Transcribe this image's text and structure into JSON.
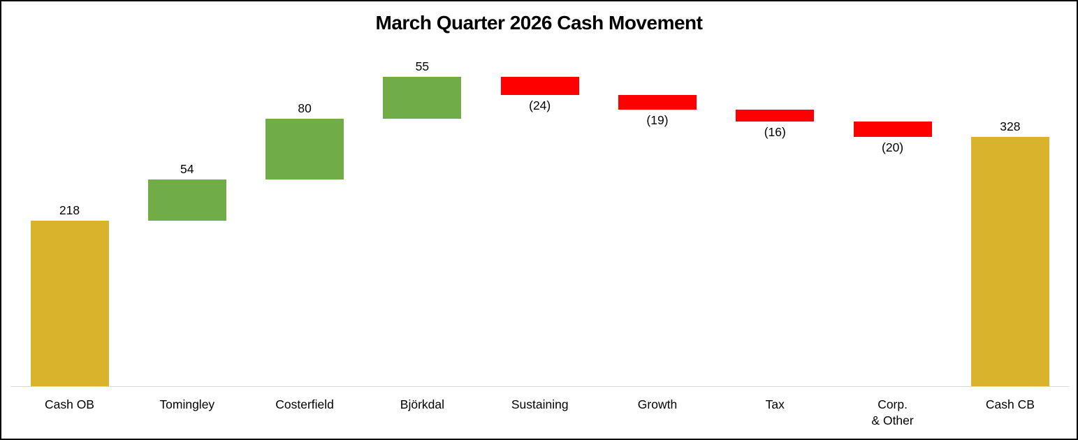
{
  "chart_data": {
    "type": "bar",
    "subtype": "waterfall",
    "title": "March Quarter 2026 Cash Movement",
    "categories": [
      "Cash OB",
      "Tomingley",
      "Costerfield",
      "Björkdal",
      "Sustaining",
      "Growth",
      "Tax",
      "Corp.\n& Other",
      "Cash CB"
    ],
    "values": [
      218,
      54,
      80,
      55,
      -24,
      -19,
      -16,
      -20,
      328
    ],
    "roles": [
      "total",
      "increase",
      "increase",
      "increase",
      "decrease",
      "decrease",
      "decrease",
      "decrease",
      "total"
    ],
    "data_labels": [
      "218",
      "54",
      "80",
      "55",
      "(24)",
      "(19)",
      "(16)",
      "(20)",
      "328"
    ],
    "cumulative": [
      218,
      272,
      352,
      407,
      383,
      364,
      348,
      328,
      328
    ],
    "colors": {
      "total": "#D9B32B",
      "increase": "#70AD47",
      "decrease": "#FF0000",
      "axis_line": "#D9D9D9",
      "text": "#000000",
      "frame_border": "#000000"
    },
    "axis": {
      "baseline_value": 0,
      "ylim": [
        0,
        420
      ],
      "gridlines": false,
      "y_axis_visible": false,
      "legend": "none"
    }
  }
}
